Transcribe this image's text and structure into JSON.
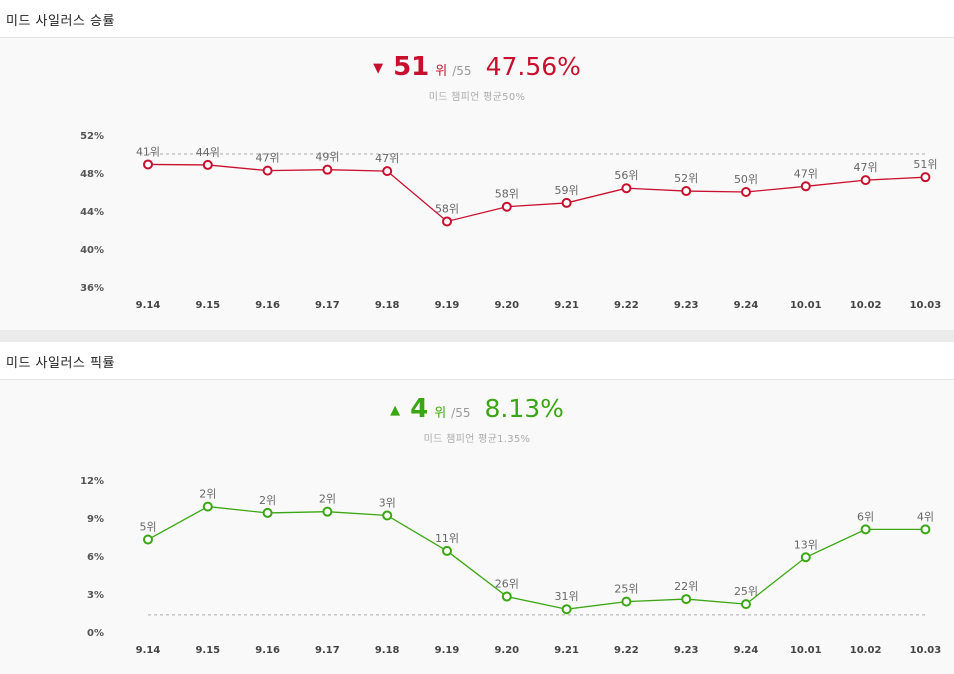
{
  "panels": [
    {
      "title": "미드 사일러스 승률",
      "arrow": "▼",
      "rank": "51",
      "rank_unit": "위",
      "rank_total": "/55",
      "rate": "47.56%",
      "avg_text": "미드 챔피언 평균50%",
      "accent": "#c8102e"
    },
    {
      "title": "미드 사일러스 픽률",
      "arrow": "▲",
      "rank": "4",
      "rank_unit": "위",
      "rank_total": "/55",
      "rate": "8.13%",
      "avg_text": "미드 챔피언 평균1.35%",
      "accent": "#3aa613"
    }
  ],
  "chart_data": [
    {
      "type": "line",
      "title": "미드 사일러스 승률",
      "categories": [
        "9.14",
        "9.15",
        "9.16",
        "9.17",
        "9.18",
        "9.19",
        "9.20",
        "9.21",
        "9.22",
        "9.23",
        "9.24",
        "10.01",
        "10.02",
        "10.03"
      ],
      "values": [
        48.9,
        48.85,
        48.25,
        48.35,
        48.2,
        42.9,
        44.45,
        44.85,
        46.4,
        46.1,
        46.0,
        46.6,
        47.25,
        47.56
      ],
      "rank_labels": [
        "41위",
        "44위",
        "47위",
        "49위",
        "47위",
        "58위",
        "58위",
        "59위",
        "56위",
        "52위",
        "50위",
        "47위",
        "47위",
        "51위"
      ],
      "average": 50,
      "yticks": [
        "52%",
        "48%",
        "44%",
        "40%",
        "36%"
      ],
      "ytick_values": [
        52,
        48,
        44,
        40,
        36
      ],
      "ylim": [
        36,
        52
      ],
      "color": "#c8102e"
    },
    {
      "type": "line",
      "title": "미드 사일러스 픽률",
      "categories": [
        "9.14",
        "9.15",
        "9.16",
        "9.17",
        "9.18",
        "9.19",
        "9.20",
        "9.21",
        "9.22",
        "9.23",
        "9.24",
        "10.01",
        "10.02",
        "10.03"
      ],
      "values": [
        7.3,
        9.9,
        9.4,
        9.5,
        9.2,
        6.4,
        2.8,
        1.8,
        2.4,
        2.6,
        2.2,
        5.9,
        8.1,
        8.1
      ],
      "rank_labels": [
        "5위",
        "2위",
        "2위",
        "2위",
        "3위",
        "11위",
        "26위",
        "31위",
        "25위",
        "22위",
        "25위",
        "13위",
        "6위",
        "4위"
      ],
      "average": 1.35,
      "yticks": [
        "12%",
        "9%",
        "6%",
        "3%",
        "0%"
      ],
      "ytick_values": [
        12,
        9,
        6,
        3,
        0
      ],
      "ylim": [
        0,
        12
      ],
      "color": "#3aa613"
    }
  ]
}
